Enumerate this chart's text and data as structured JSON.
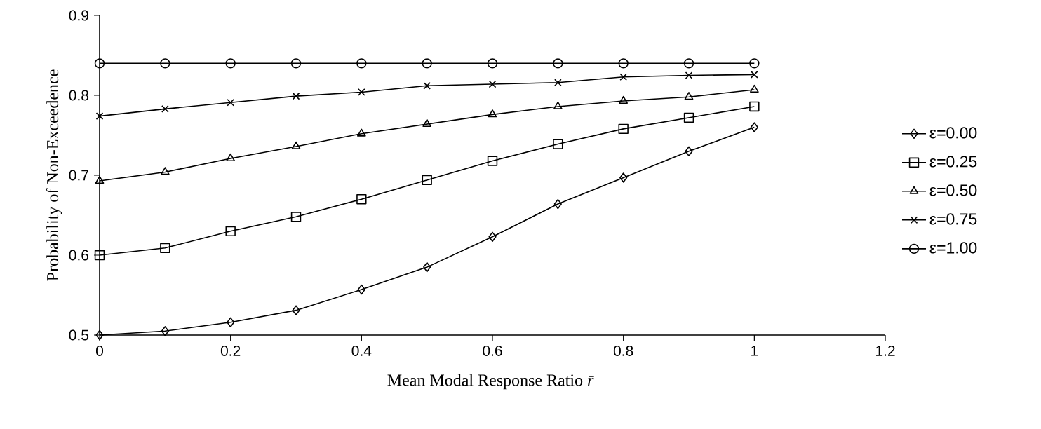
{
  "chart_data": {
    "type": "line",
    "xlabel": "Mean Modal Response Ratio *r̄*",
    "ylabel": "Probability of Non-Exceedence",
    "x": [
      0,
      0.1,
      0.2,
      0.3,
      0.4,
      0.5,
      0.6,
      0.7,
      0.8,
      0.9,
      1.0
    ],
    "xlim": [
      0,
      1.2
    ],
    "xticks": [
      0,
      0.2,
      0.4,
      0.6,
      0.8,
      1,
      1.2
    ],
    "ylim": [
      0.5,
      0.9
    ],
    "yticks": [
      0.5,
      0.6,
      0.7,
      0.8,
      0.9
    ],
    "legend": "right",
    "line_style": "solid",
    "series": [
      {
        "name": "ε=0.00",
        "color": "#000000",
        "marker": "diamond",
        "values": [
          0.5,
          0.505,
          0.516,
          0.531,
          0.557,
          0.585,
          0.623,
          0.664,
          0.697,
          0.73,
          0.76
        ]
      },
      {
        "name": "ε=0.25",
        "color": "#000000",
        "marker": "square",
        "values": [
          0.6,
          0.609,
          0.63,
          0.648,
          0.67,
          0.694,
          0.718,
          0.739,
          0.758,
          0.772,
          0.786
        ]
      },
      {
        "name": "ε=0.50",
        "color": "#000000",
        "marker": "triangle",
        "values": [
          0.693,
          0.704,
          0.721,
          0.736,
          0.752,
          0.764,
          0.776,
          0.786,
          0.793,
          0.798,
          0.807
        ]
      },
      {
        "name": "ε=0.75",
        "color": "#000000",
        "marker": "cross",
        "values": [
          0.774,
          0.783,
          0.791,
          0.799,
          0.804,
          0.812,
          0.814,
          0.816,
          0.823,
          0.825,
          0.826
        ]
      },
      {
        "name": "ε=1.00",
        "color": "#000000",
        "marker": "circle",
        "values": [
          0.84,
          0.84,
          0.84,
          0.84,
          0.84,
          0.84,
          0.84,
          0.84,
          0.84,
          0.84,
          0.84
        ]
      }
    ]
  }
}
